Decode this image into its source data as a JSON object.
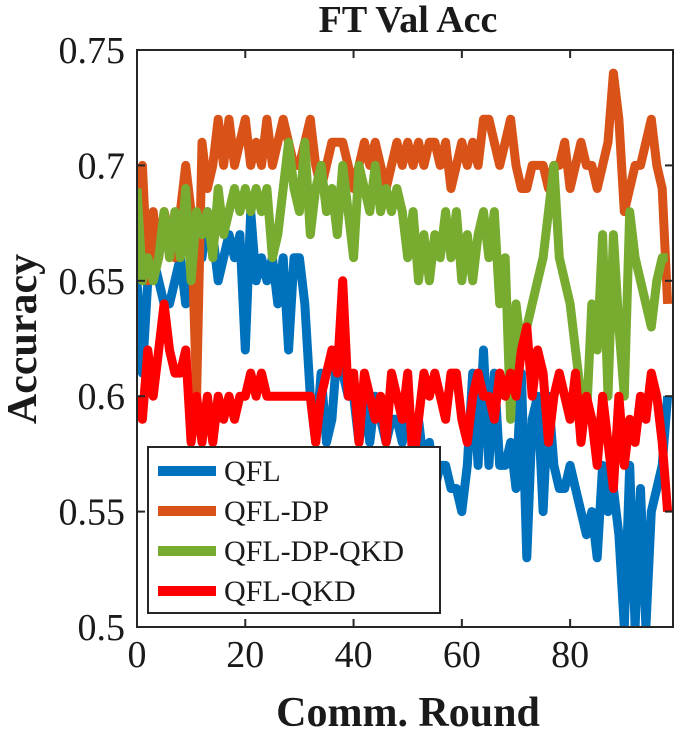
{
  "chart_data": {
    "type": "line",
    "title": "FT Val Acc",
    "xlabel": "Comm. Round",
    "ylabel": "Accuracy",
    "xlim": [
      0,
      99
    ],
    "ylim": [
      0.5,
      0.75
    ],
    "xticks": [
      0,
      20,
      40,
      60,
      80
    ],
    "xtick_labels": [
      "0",
      "20",
      "40",
      "60",
      "80"
    ],
    "yticks": [
      0.5,
      0.55,
      0.6,
      0.65,
      0.7,
      0.75
    ],
    "ytick_labels": [
      "0.5",
      "0.55",
      "0.6",
      "0.65",
      "0.7",
      "0.75"
    ],
    "grid": false,
    "legend_position": "bottom-left",
    "series": [
      {
        "name": "QFL",
        "color": "#0072BD",
        "values": [
          0.65,
          0.61,
          0.65,
          0.66,
          0.65,
          0.64,
          0.64,
          0.65,
          0.66,
          0.64,
          0.65,
          0.67,
          0.66,
          0.68,
          0.67,
          0.65,
          0.66,
          0.67,
          0.66,
          0.67,
          0.62,
          0.68,
          0.65,
          0.66,
          0.65,
          0.66,
          0.64,
          0.66,
          0.62,
          0.66,
          0.66,
          0.64,
          0.6,
          0.58,
          0.61,
          0.58,
          0.59,
          0.62,
          0.61,
          0.6,
          0.6,
          0.58,
          0.6,
          0.58,
          0.6,
          0.59,
          0.58,
          0.59,
          0.59,
          0.58,
          0.6,
          0.58,
          0.59,
          0.57,
          0.58,
          0.56,
          0.57,
          0.57,
          0.56,
          0.56,
          0.55,
          0.57,
          0.61,
          0.57,
          0.62,
          0.57,
          0.61,
          0.57,
          0.57,
          0.58,
          0.56,
          0.61,
          0.53,
          0.59,
          0.6,
          0.55,
          0.6,
          0.57,
          0.56,
          0.56,
          0.57,
          0.56,
          0.55,
          0.54,
          0.55,
          0.53,
          0.57,
          0.55,
          0.56,
          0.54,
          0.5,
          0.57,
          0.5,
          0.56,
          0.5,
          0.55,
          0.56,
          0.57,
          0.6
        ]
      },
      {
        "name": "QFL-DP",
        "color": "#D95319",
        "values": [
          0.68,
          0.7,
          0.65,
          0.68,
          0.66,
          0.68,
          0.67,
          0.66,
          0.68,
          0.7,
          0.68,
          0.6,
          0.71,
          0.69,
          0.7,
          0.72,
          0.7,
          0.72,
          0.7,
          0.71,
          0.72,
          0.7,
          0.71,
          0.7,
          0.72,
          0.7,
          0.71,
          0.72,
          0.71,
          0.7,
          0.7,
          0.71,
          0.72,
          0.7,
          0.69,
          0.7,
          0.71,
          0.71,
          0.71,
          0.7,
          0.69,
          0.7,
          0.71,
          0.7,
          0.71,
          0.7,
          0.69,
          0.7,
          0.71,
          0.7,
          0.71,
          0.7,
          0.71,
          0.7,
          0.71,
          0.71,
          0.7,
          0.71,
          0.69,
          0.7,
          0.71,
          0.7,
          0.71,
          0.7,
          0.72,
          0.72,
          0.71,
          0.7,
          0.71,
          0.72,
          0.7,
          0.69,
          0.69,
          0.7,
          0.7,
          0.7,
          0.69,
          0.7,
          0.7,
          0.71,
          0.69,
          0.7,
          0.71,
          0.7,
          0.7,
          0.69,
          0.7,
          0.71,
          0.74,
          0.72,
          0.68,
          0.69,
          0.7,
          0.7,
          0.71,
          0.72,
          0.7,
          0.69,
          0.64
        ]
      },
      {
        "name": "QFL-DP-QKD",
        "color": "#77AC30",
        "values": [
          0.69,
          0.65,
          0.66,
          0.65,
          0.66,
          0.68,
          0.66,
          0.68,
          0.66,
          0.69,
          0.65,
          0.68,
          0.67,
          0.68,
          0.66,
          0.69,
          0.67,
          0.68,
          0.69,
          0.68,
          0.69,
          0.68,
          0.69,
          0.68,
          0.69,
          0.66,
          0.67,
          0.69,
          0.71,
          0.69,
          0.68,
          0.71,
          0.67,
          0.69,
          0.7,
          0.68,
          0.69,
          0.67,
          0.7,
          0.68,
          0.66,
          0.7,
          0.69,
          0.68,
          0.7,
          0.68,
          0.69,
          0.68,
          0.69,
          0.68,
          0.66,
          0.68,
          0.65,
          0.67,
          0.65,
          0.67,
          0.66,
          0.68,
          0.66,
          0.68,
          0.65,
          0.67,
          0.65,
          0.67,
          0.68,
          0.66,
          0.68,
          0.64,
          0.66,
          0.59,
          0.64,
          0.62,
          0.63,
          0.64,
          0.65,
          0.66,
          0.68,
          0.7,
          0.66,
          0.65,
          0.64,
          0.62,
          0.6,
          0.59,
          0.64,
          0.62,
          0.67,
          0.6,
          0.67,
          0.63,
          0.6,
          0.68,
          0.66,
          0.65,
          0.64,
          0.63,
          0.65,
          0.66,
          0.66
        ]
      },
      {
        "name": "QFL-QKD",
        "color": "#FF0000",
        "values": [
          0.6,
          0.59,
          0.62,
          0.6,
          0.62,
          0.64,
          0.62,
          0.61,
          0.61,
          0.62,
          0.58,
          0.6,
          0.58,
          0.6,
          0.58,
          0.6,
          0.59,
          0.6,
          0.59,
          0.6,
          0.6,
          0.61,
          0.6,
          0.61,
          0.6,
          0.6,
          0.6,
          0.6,
          0.6,
          0.6,
          0.6,
          0.6,
          0.6,
          0.58,
          0.6,
          0.61,
          0.62,
          0.61,
          0.65,
          0.6,
          0.61,
          0.58,
          0.61,
          0.6,
          0.59,
          0.6,
          0.58,
          0.61,
          0.6,
          0.59,
          0.61,
          0.57,
          0.59,
          0.61,
          0.6,
          0.61,
          0.6,
          0.59,
          0.61,
          0.61,
          0.59,
          0.58,
          0.6,
          0.61,
          0.6,
          0.6,
          0.59,
          0.61,
          0.6,
          0.61,
          0.6,
          0.62,
          0.63,
          0.6,
          0.62,
          0.61,
          0.58,
          0.6,
          0.61,
          0.6,
          0.59,
          0.61,
          0.58,
          0.6,
          0.59,
          0.57,
          0.6,
          0.58,
          0.56,
          0.6,
          0.57,
          0.59,
          0.58,
          0.6,
          0.59,
          0.61,
          0.6,
          0.58,
          0.55
        ]
      }
    ]
  }
}
